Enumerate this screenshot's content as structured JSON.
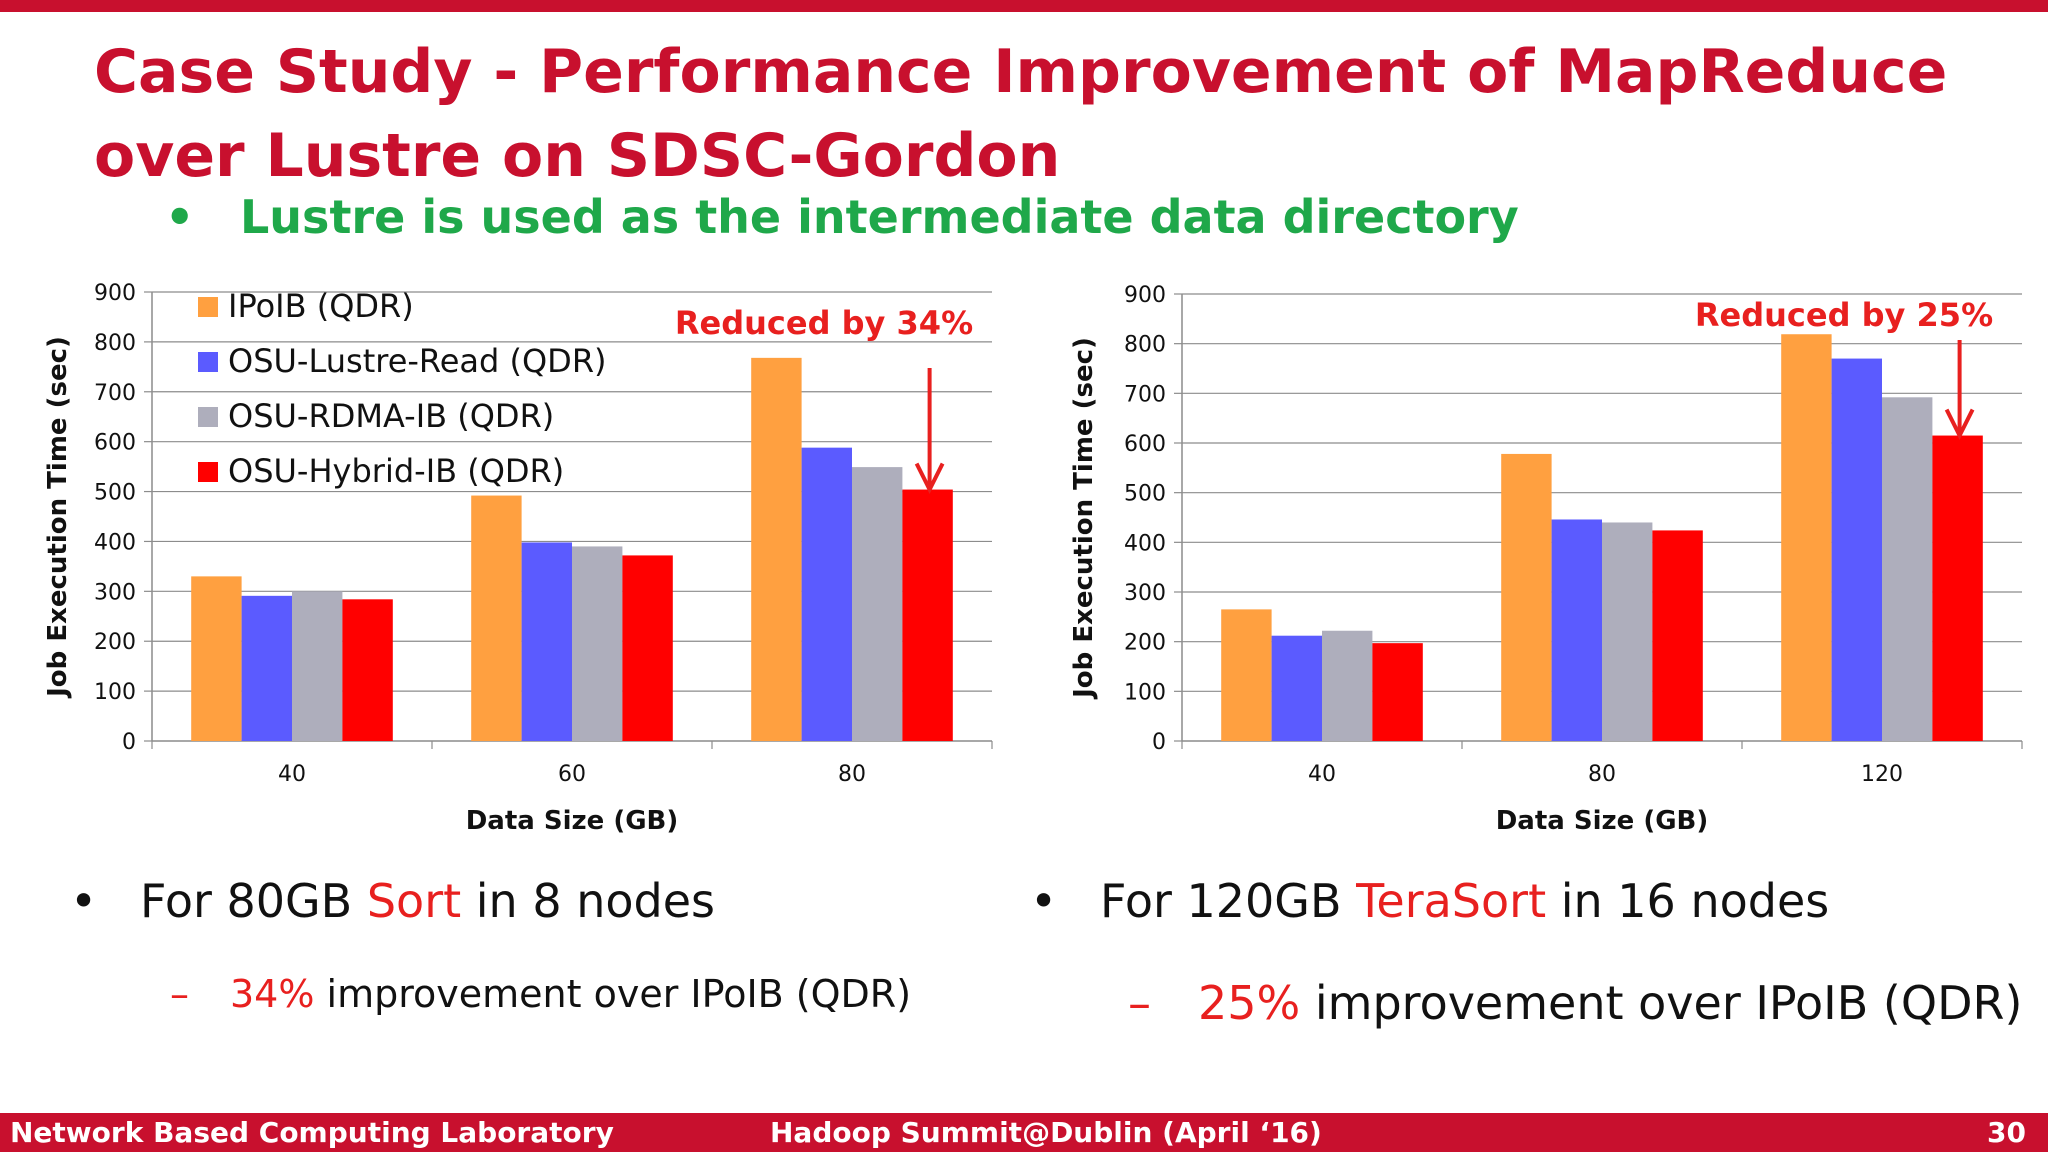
{
  "slide": {
    "title": "Case Study - Performance Improvement of MapReduce over Lustre on SDSC-Gordon",
    "subbullet": "Lustre is used as the intermediate data directory",
    "bullet_left": {
      "prefix": "For 80GB ",
      "highlight": "Sort",
      "suffix": " in 8 nodes"
    },
    "sub_left": {
      "dash": "–",
      "highlight": "34%",
      "suffix": " improvement over IPoIB (QDR)"
    },
    "bullet_right": {
      "prefix": "For 120GB ",
      "highlight": "TeraSort",
      "suffix": " in 16 nodes"
    },
    "sub_right": {
      "dash": "–",
      "highlight": "25%",
      "suffix": " improvement over IPoIB (QDR)"
    },
    "bullet_glyph": "•"
  },
  "footer": {
    "lab": "Network Based Computing Laboratory",
    "event": "Hadoop Summit@Dublin (April ‘16)",
    "page": "30"
  },
  "colors": {
    "accent": "#c8102e",
    "subtitle": "#1fa84a",
    "highlight": "#e8201f",
    "series": [
      "#ffa040",
      "#5b5bff",
      "#aeaebc",
      "#ff0000"
    ]
  },
  "chart_data": [
    {
      "type": "bar",
      "categories": [
        "40",
        "60",
        "80"
      ],
      "series": [
        {
          "name": "IPoIB (QDR)",
          "values": [
            330,
            492,
            768
          ]
        },
        {
          "name": "OSU-Lustre-Read (QDR)",
          "values": [
            291,
            398,
            588
          ]
        },
        {
          "name": "OSU-RDMA-IB (QDR)",
          "values": [
            300,
            390,
            549
          ]
        },
        {
          "name": "OSU-Hybrid-IB (QDR)",
          "values": [
            284,
            372,
            504
          ]
        }
      ],
      "xlabel": "Data Size (GB)",
      "ylabel": "Job Execution Time (sec)",
      "ylim": [
        0,
        900
      ],
      "yticks": [
        0,
        100,
        200,
        300,
        400,
        500,
        600,
        700,
        800,
        900
      ],
      "grid": true,
      "legend": "top-left",
      "annotation": "Reduced by 34%"
    },
    {
      "type": "bar",
      "categories": [
        "40",
        "80",
        "120"
      ],
      "series": [
        {
          "values": [
            265,
            578,
            819
          ]
        },
        {
          "values": [
            212,
            446,
            770
          ]
        },
        {
          "values": [
            222,
            440,
            692
          ]
        },
        {
          "values": [
            197,
            424,
            615
          ]
        }
      ],
      "xlabel": "Data Size (GB)",
      "ylabel": "Job Execution Time (sec)",
      "ylim": [
        0,
        900
      ],
      "yticks": [
        0,
        100,
        200,
        300,
        400,
        500,
        600,
        700,
        800,
        900
      ],
      "grid": true,
      "legend": "none",
      "annotation": "Reduced by 25%"
    }
  ]
}
